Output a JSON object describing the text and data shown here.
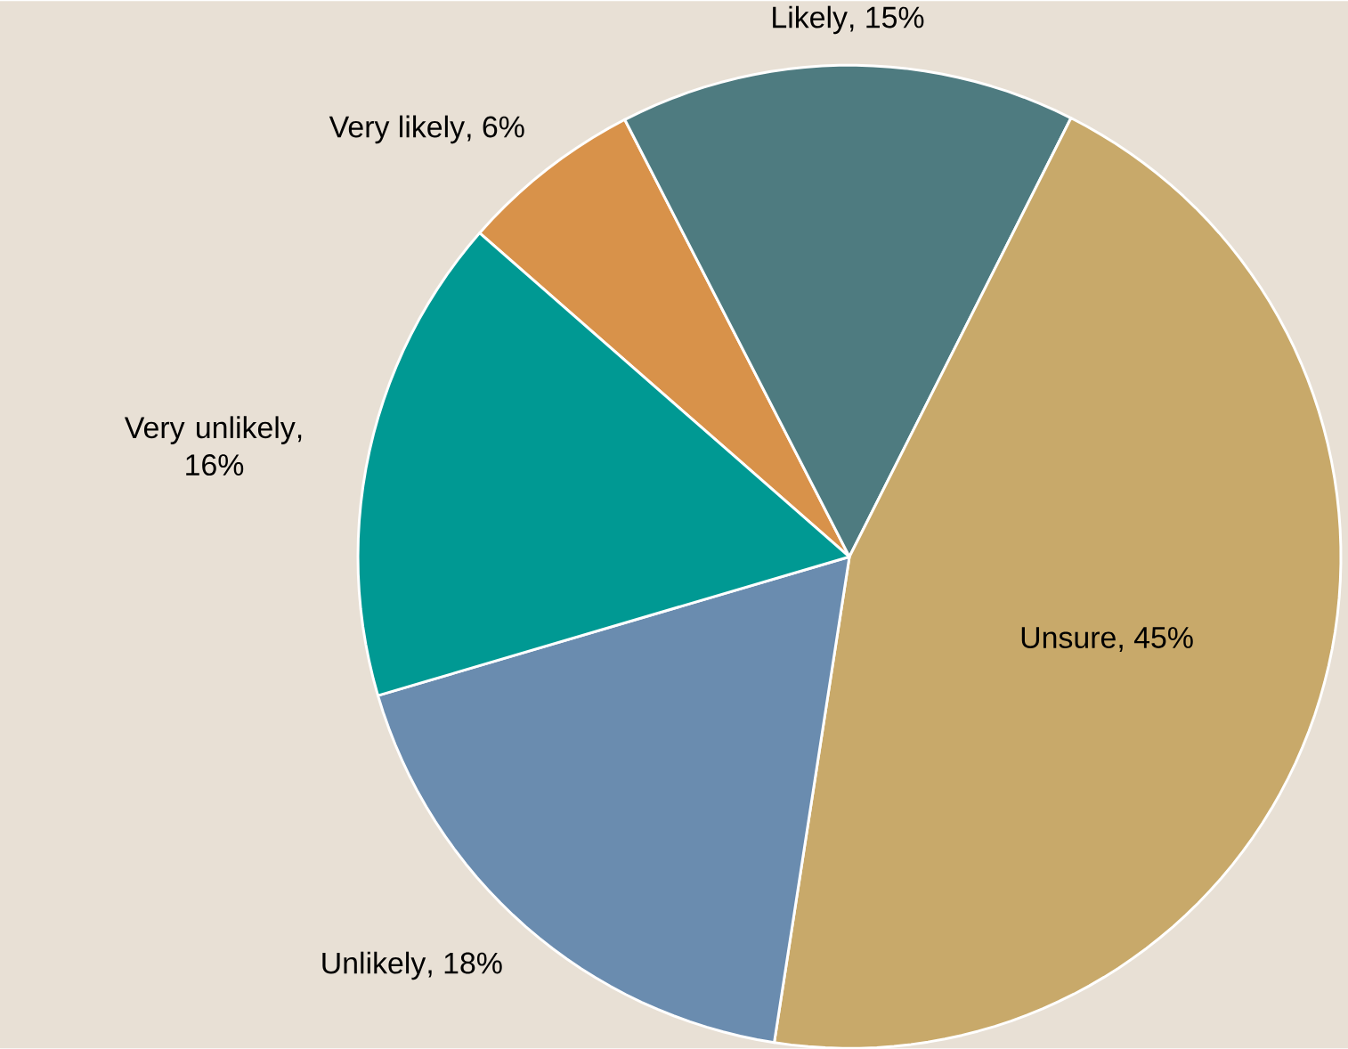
{
  "chart_data": {
    "type": "pie",
    "categories": [
      "Very likely",
      "Likely",
      "Unsure",
      "Unlikely",
      "Very unlikely"
    ],
    "values": [
      6,
      15,
      45,
      18,
      16
    ],
    "colors": [
      "#d8924a",
      "#4e7b80",
      "#c8a96a",
      "#6a8caf",
      "#009993"
    ],
    "value_labels": [
      ", 6%",
      ", 15%",
      ", 45%",
      ", 18%",
      ", 16%"
    ]
  }
}
